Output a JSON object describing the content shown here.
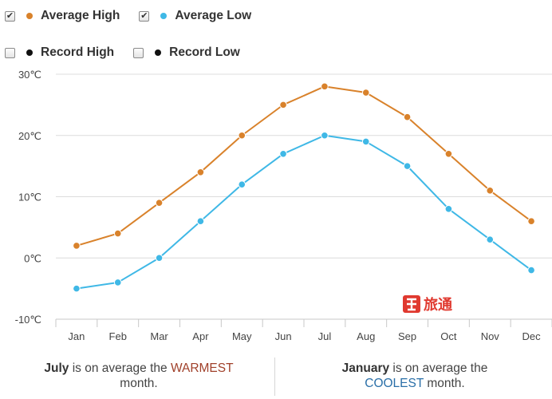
{
  "legend": {
    "average_high": {
      "label": "Average High",
      "checked": true,
      "color": "#d9822b",
      "check_glyph": "✔"
    },
    "average_low": {
      "label": "Average Low",
      "checked": true,
      "color": "#3fb8e6",
      "check_glyph": "✔"
    },
    "record_high": {
      "label": "Record High",
      "checked": false,
      "color": "#111111",
      "check_glyph": ""
    },
    "record_low": {
      "label": "Record Low",
      "checked": false,
      "color": "#111111",
      "check_glyph": ""
    }
  },
  "chart_data": {
    "type": "line",
    "categories": [
      "Jan",
      "Feb",
      "Mar",
      "Apr",
      "May",
      "Jun",
      "Jul",
      "Aug",
      "Sep",
      "Oct",
      "Nov",
      "Dec"
    ],
    "series": [
      {
        "name": "Average High",
        "color": "#d9822b",
        "values": [
          2,
          4,
          9,
          14,
          20,
          25,
          28,
          27,
          23,
          17,
          11,
          6
        ]
      },
      {
        "name": "Average Low",
        "color": "#3fb8e6",
        "values": [
          -5,
          -4,
          0,
          6,
          12,
          17,
          20,
          19,
          15,
          8,
          3,
          -2
        ]
      }
    ],
    "y_ticks": [
      "-10℃",
      "0℃",
      "10℃",
      "20℃",
      "30℃"
    ],
    "ylim": [
      -10,
      30
    ],
    "grid": true,
    "legend_position": "top-left"
  },
  "footer": {
    "warm": {
      "month": "July",
      "text": " is on average the ",
      "highlight": "WARMEST",
      "tail": "month."
    },
    "cool": {
      "month": "January",
      "text": " is on average the ",
      "highlight": "COOLEST",
      "tail": " month."
    }
  },
  "watermark": {
    "text": "旅通",
    "description": "logo"
  }
}
